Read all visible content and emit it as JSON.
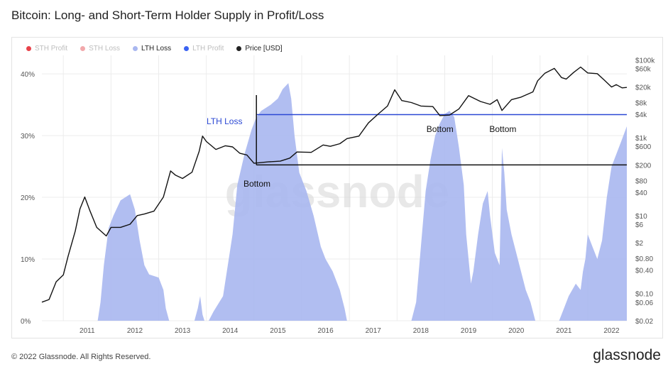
{
  "title": "Bitcoin: Long- and Short-Term Holder Supply in Profit/Loss",
  "footer": "© 2022 Glassnode. All Rights Reserved.",
  "brand": "glassnode",
  "watermark": "glassnode",
  "colors": {
    "sth_profit": "#e8424a",
    "sth_loss": "#f2a8ab",
    "lth_loss": "#a9b7f0",
    "lth_profit": "#3b63f2",
    "price": "#111111",
    "annotation_blue": "#2b48d4",
    "grid": "#ececec"
  },
  "legend": [
    {
      "label": "STH Profit",
      "color": "#e8424a",
      "active": false
    },
    {
      "label": "STH Loss",
      "color": "#f2a8ab",
      "active": false
    },
    {
      "label": "LTH Loss",
      "color": "#a9b7f0",
      "active": true
    },
    {
      "label": "LTH Profit",
      "color": "#3b63f2",
      "active": false
    },
    {
      "label": "Price [USD]",
      "color": "#222222",
      "active": true
    }
  ],
  "chart_data": {
    "type": "area",
    "title": "Bitcoin: Long- and Short-Term Holder Supply in Profit/Loss",
    "x_range": [
      2010.55,
      2022.82
    ],
    "x_ticks": [
      "2011",
      "2012",
      "2013",
      "2014",
      "2015",
      "2016",
      "2017",
      "2018",
      "2019",
      "2020",
      "2021",
      "2022"
    ],
    "y_left": {
      "range": [
        0,
        43
      ],
      "ticks": [
        0,
        10,
        20,
        30,
        40
      ],
      "tick_labels": [
        "0%",
        "10%",
        "20%",
        "30%",
        "40%"
      ]
    },
    "y_right": {
      "scale": "log",
      "range": [
        0.02,
        130000
      ],
      "ticks": [
        0.02,
        0.06,
        0.1,
        0.4,
        0.8,
        2,
        6,
        10,
        40,
        80,
        200,
        600,
        1000,
        4000,
        8000,
        20000,
        60000,
        100000
      ],
      "tick_labels": [
        "$0.02",
        "$0.06",
        "$0.10",
        "$0.40",
        "$0.80",
        "$2",
        "$6",
        "$10",
        "$40",
        "$80",
        "$200",
        "$600",
        "$1k",
        "$4k",
        "$8k",
        "$20k",
        "$60k",
        "$100k"
      ]
    },
    "series": [
      {
        "name": "LTH Loss",
        "axis": "left",
        "unit": "%",
        "points": [
          [
            2011.72,
            0
          ],
          [
            2011.78,
            3
          ],
          [
            2011.85,
            9
          ],
          [
            2011.95,
            15
          ],
          [
            2012.05,
            17
          ],
          [
            2012.2,
            19.5
          ],
          [
            2012.4,
            20.5
          ],
          [
            2012.5,
            18
          ],
          [
            2012.6,
            13
          ],
          [
            2012.7,
            9
          ],
          [
            2012.8,
            7.5
          ],
          [
            2013.0,
            7
          ],
          [
            2013.1,
            5
          ],
          [
            2013.15,
            2
          ],
          [
            2013.22,
            0
          ],
          [
            2013.75,
            0
          ],
          [
            2013.82,
            2
          ],
          [
            2013.87,
            4
          ],
          [
            2013.92,
            1
          ],
          [
            2013.96,
            0
          ],
          [
            2014.05,
            0
          ],
          [
            2014.15,
            1.5
          ],
          [
            2014.35,
            4
          ],
          [
            2014.45,
            9
          ],
          [
            2014.55,
            14
          ],
          [
            2014.65,
            22
          ],
          [
            2014.8,
            27
          ],
          [
            2014.95,
            31
          ],
          [
            2015.05,
            33
          ],
          [
            2015.15,
            34
          ],
          [
            2015.35,
            35
          ],
          [
            2015.5,
            36
          ],
          [
            2015.6,
            37.5
          ],
          [
            2015.72,
            38.5
          ],
          [
            2015.78,
            36
          ],
          [
            2015.85,
            30
          ],
          [
            2015.95,
            24
          ],
          [
            2016.1,
            21
          ],
          [
            2016.25,
            17
          ],
          [
            2016.4,
            12
          ],
          [
            2016.5,
            10
          ],
          [
            2016.65,
            8
          ],
          [
            2016.8,
            5
          ],
          [
            2016.9,
            2
          ],
          [
            2016.95,
            0
          ],
          [
            2018.3,
            0
          ],
          [
            2018.4,
            3
          ],
          [
            2018.5,
            12
          ],
          [
            2018.6,
            21
          ],
          [
            2018.7,
            26
          ],
          [
            2018.8,
            30
          ],
          [
            2018.9,
            32
          ],
          [
            2019.0,
            33.5
          ],
          [
            2019.1,
            34
          ],
          [
            2019.2,
            33
          ],
          [
            2019.3,
            28
          ],
          [
            2019.4,
            22
          ],
          [
            2019.45,
            14
          ],
          [
            2019.55,
            6
          ],
          [
            2019.6,
            8
          ],
          [
            2019.7,
            14
          ],
          [
            2019.8,
            19
          ],
          [
            2019.9,
            21
          ],
          [
            2019.95,
            17
          ],
          [
            2020.05,
            11
          ],
          [
            2020.15,
            9
          ],
          [
            2020.2,
            28
          ],
          [
            2020.25,
            24
          ],
          [
            2020.3,
            18
          ],
          [
            2020.4,
            14
          ],
          [
            2020.5,
            11
          ],
          [
            2020.6,
            8
          ],
          [
            2020.7,
            5
          ],
          [
            2020.8,
            3
          ],
          [
            2020.9,
            0
          ],
          [
            2021.4,
            0
          ],
          [
            2021.5,
            2
          ],
          [
            2021.6,
            4
          ],
          [
            2021.75,
            6
          ],
          [
            2021.85,
            5
          ],
          [
            2021.9,
            8
          ],
          [
            2021.95,
            10
          ],
          [
            2022.0,
            14
          ],
          [
            2022.1,
            12
          ],
          [
            2022.2,
            10
          ],
          [
            2022.3,
            13
          ],
          [
            2022.4,
            20
          ],
          [
            2022.5,
            25
          ],
          [
            2022.6,
            27
          ],
          [
            2022.7,
            29
          ],
          [
            2022.82,
            31.5
          ]
        ]
      },
      {
        "name": "Price [USD]",
        "axis": "right",
        "unit": "USD",
        "points": [
          [
            2010.55,
            0.06
          ],
          [
            2010.7,
            0.07
          ],
          [
            2010.85,
            0.2
          ],
          [
            2011.0,
            0.3
          ],
          [
            2011.1,
            0.9
          ],
          [
            2011.25,
            4
          ],
          [
            2011.35,
            15
          ],
          [
            2011.45,
            30
          ],
          [
            2011.55,
            14
          ],
          [
            2011.7,
            5
          ],
          [
            2011.9,
            3
          ],
          [
            2012.0,
            5
          ],
          [
            2012.2,
            5
          ],
          [
            2012.4,
            6
          ],
          [
            2012.55,
            10
          ],
          [
            2012.7,
            11
          ],
          [
            2012.9,
            13
          ],
          [
            2013.1,
            30
          ],
          [
            2013.25,
            140
          ],
          [
            2013.35,
            110
          ],
          [
            2013.5,
            90
          ],
          [
            2013.7,
            130
          ],
          [
            2013.85,
            450
          ],
          [
            2013.92,
            1100
          ],
          [
            2014.0,
            800
          ],
          [
            2014.2,
            500
          ],
          [
            2014.4,
            620
          ],
          [
            2014.55,
            580
          ],
          [
            2014.7,
            400
          ],
          [
            2014.85,
            360
          ],
          [
            2015.0,
            220
          ],
          [
            2015.3,
            240
          ],
          [
            2015.55,
            250
          ],
          [
            2015.75,
            300
          ],
          [
            2015.9,
            430
          ],
          [
            2016.2,
            420
          ],
          [
            2016.45,
            650
          ],
          [
            2016.6,
            600
          ],
          [
            2016.8,
            700
          ],
          [
            2016.95,
            950
          ],
          [
            2017.2,
            1100
          ],
          [
            2017.4,
            2400
          ],
          [
            2017.6,
            4000
          ],
          [
            2017.8,
            6500
          ],
          [
            2017.95,
            17000
          ],
          [
            2018.1,
            9000
          ],
          [
            2018.3,
            8000
          ],
          [
            2018.5,
            6500
          ],
          [
            2018.75,
            6300
          ],
          [
            2018.9,
            3700
          ],
          [
            2019.1,
            3800
          ],
          [
            2019.3,
            5500
          ],
          [
            2019.5,
            12000
          ],
          [
            2019.75,
            8500
          ],
          [
            2019.95,
            7200
          ],
          [
            2020.1,
            9500
          ],
          [
            2020.2,
            5000
          ],
          [
            2020.4,
            9500
          ],
          [
            2020.6,
            11000
          ],
          [
            2020.85,
            15000
          ],
          [
            2020.95,
            29000
          ],
          [
            2021.1,
            45000
          ],
          [
            2021.3,
            60000
          ],
          [
            2021.45,
            35000
          ],
          [
            2021.55,
            32000
          ],
          [
            2021.7,
            47000
          ],
          [
            2021.85,
            65000
          ],
          [
            2022.0,
            46000
          ],
          [
            2022.2,
            44000
          ],
          [
            2022.35,
            30000
          ],
          [
            2022.5,
            20000
          ],
          [
            2022.6,
            23000
          ],
          [
            2022.72,
            19000
          ],
          [
            2022.82,
            19500
          ]
        ]
      }
    ],
    "annotations": [
      {
        "text": "LTH Loss",
        "color": "#2b48d4",
        "type": "hline",
        "axis": "left",
        "value": 33.4,
        "x_from": 2015.05,
        "x_to": 2022.82
      },
      {
        "text": "Bottom",
        "type": "hline",
        "axis": "right",
        "value": 200,
        "x_from": 2015.05,
        "x_to": 2022.82
      },
      {
        "text": "Bottom",
        "type": "label",
        "x": 2018.9
      },
      {
        "text": "Bottom",
        "type": "label",
        "x": 2020.22
      }
    ]
  }
}
